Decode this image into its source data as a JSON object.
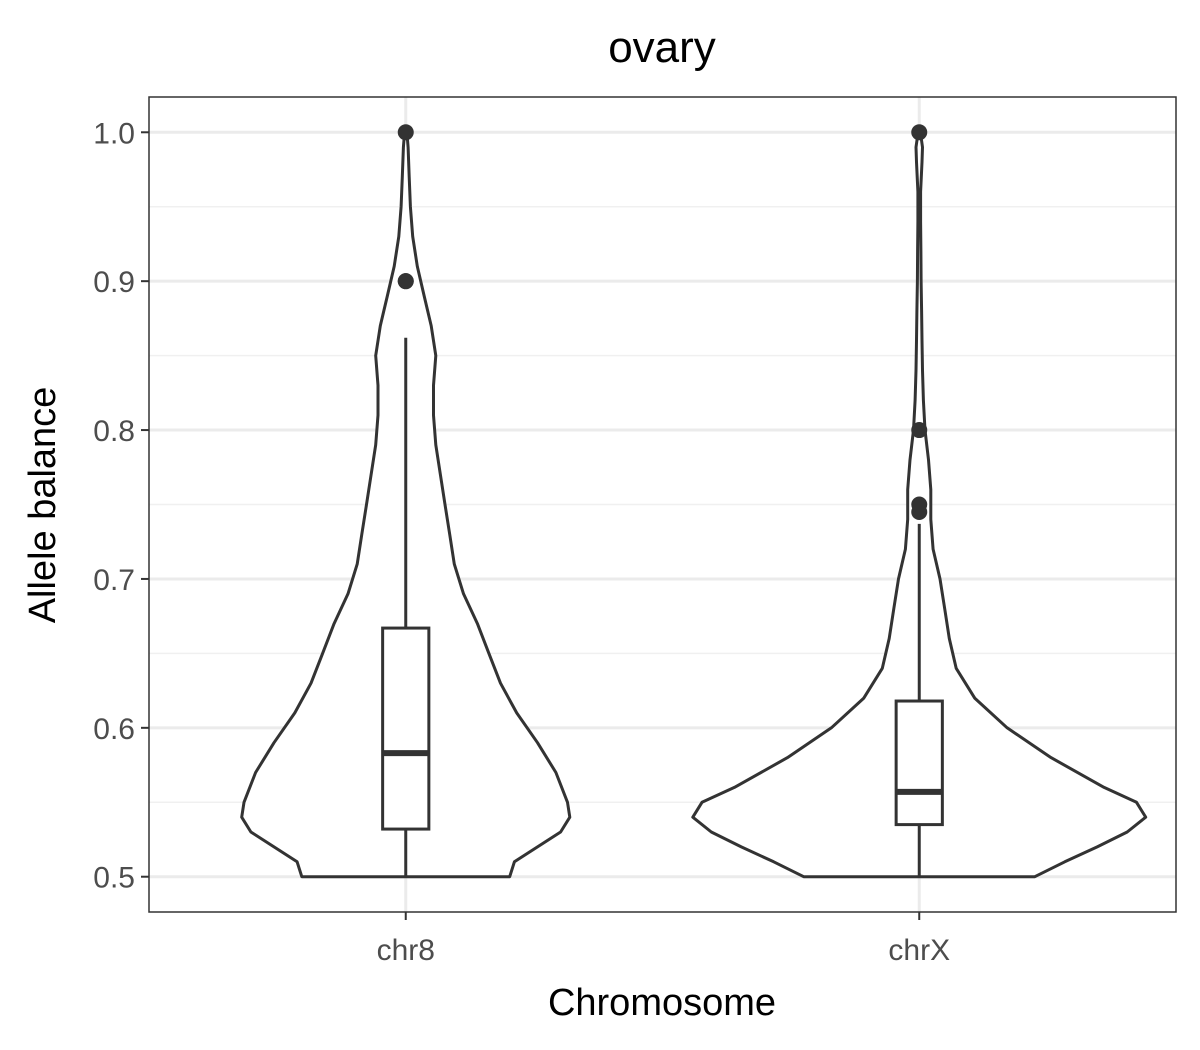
{
  "chart_data": {
    "type": "violin",
    "title": "ovary",
    "xlabel": "Chromosome",
    "ylabel": "Allele balance",
    "ylim": [
      0.4763,
      1.0237
    ],
    "y_ticks": [
      "0.5",
      "0.6",
      "0.7",
      "0.8",
      "0.9",
      "1.0"
    ],
    "y_tick_values": [
      0.5,
      0.6,
      0.7,
      0.8,
      0.9,
      1.0
    ],
    "y_minor_values": [
      0.55,
      0.65,
      0.75,
      0.85,
      0.95
    ],
    "grid": true,
    "categories": [
      "chr8",
      "chrX"
    ],
    "series": [
      {
        "category": "chr8",
        "violin_profile": [
          [
            0.5,
            0.45
          ],
          [
            0.51,
            0.47
          ],
          [
            0.52,
            0.57
          ],
          [
            0.53,
            0.67
          ],
          [
            0.54,
            0.71
          ],
          [
            0.55,
            0.7
          ],
          [
            0.57,
            0.65
          ],
          [
            0.59,
            0.57
          ],
          [
            0.61,
            0.48
          ],
          [
            0.63,
            0.41
          ],
          [
            0.65,
            0.36
          ],
          [
            0.67,
            0.31
          ],
          [
            0.69,
            0.25
          ],
          [
            0.71,
            0.21
          ],
          [
            0.73,
            0.19
          ],
          [
            0.75,
            0.17
          ],
          [
            0.77,
            0.15
          ],
          [
            0.79,
            0.13
          ],
          [
            0.81,
            0.12
          ],
          [
            0.83,
            0.12
          ],
          [
            0.85,
            0.13
          ],
          [
            0.87,
            0.11
          ],
          [
            0.89,
            0.08
          ],
          [
            0.91,
            0.05
          ],
          [
            0.93,
            0.03
          ],
          [
            0.95,
            0.02
          ],
          [
            0.97,
            0.015
          ],
          [
            0.99,
            0.01
          ],
          [
            1.0,
            0.005
          ]
        ],
        "box": {
          "lower_whisker": 0.5,
          "q1": 0.532,
          "median": 0.583,
          "q3": 0.667,
          "upper_whisker": 0.862
        },
        "outliers": [
          0.9,
          0.9,
          1.0
        ]
      },
      {
        "category": "chrX",
        "violin_profile": [
          [
            0.5,
            0.5
          ],
          [
            0.51,
            0.63
          ],
          [
            0.52,
            0.77
          ],
          [
            0.53,
            0.9
          ],
          [
            0.54,
            0.98
          ],
          [
            0.55,
            0.94
          ],
          [
            0.56,
            0.8
          ],
          [
            0.58,
            0.57
          ],
          [
            0.6,
            0.38
          ],
          [
            0.62,
            0.24
          ],
          [
            0.64,
            0.16
          ],
          [
            0.66,
            0.13
          ],
          [
            0.68,
            0.11
          ],
          [
            0.7,
            0.09
          ],
          [
            0.72,
            0.06
          ],
          [
            0.74,
            0.05
          ],
          [
            0.76,
            0.05
          ],
          [
            0.78,
            0.04
          ],
          [
            0.8,
            0.025
          ],
          [
            0.82,
            0.018
          ],
          [
            0.84,
            0.014
          ],
          [
            0.86,
            0.012
          ],
          [
            0.88,
            0.01
          ],
          [
            0.9,
            0.008
          ],
          [
            0.92,
            0.007
          ],
          [
            0.94,
            0.006
          ],
          [
            0.96,
            0.006
          ],
          [
            0.98,
            0.012
          ],
          [
            0.99,
            0.014
          ],
          [
            1.0,
            0.005
          ]
        ],
        "box": {
          "lower_whisker": 0.5,
          "q1": 0.535,
          "median": 0.557,
          "q3": 0.618,
          "upper_whisker": 0.737
        },
        "outliers": [
          0.745,
          0.75,
          0.8,
          1.0
        ]
      }
    ]
  }
}
